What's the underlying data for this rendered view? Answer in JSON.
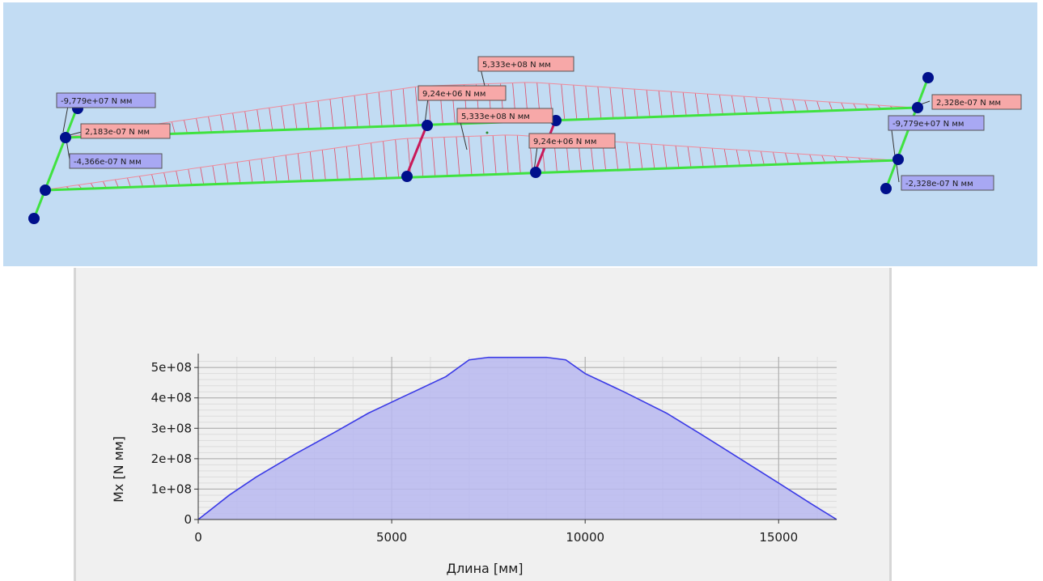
{
  "model_view": {
    "background": "#c2dcf3",
    "label_colors": {
      "positive": "#f7a8a8",
      "negative": "#a8a8f3"
    },
    "labels": [
      {
        "text": "5,333e+08 N мм",
        "sign": "positive"
      },
      {
        "text": "9,24e+06 N мм",
        "sign": "positive"
      },
      {
        "text": "5,333e+08 N мм",
        "sign": "positive"
      },
      {
        "text": "9,24e+06 N мм",
        "sign": "positive"
      },
      {
        "text": "-9,779e+07 N мм",
        "sign": "negative"
      },
      {
        "text": "2,183e-07 N мм",
        "sign": "positive"
      },
      {
        "text": "-4,366e-07 N мм",
        "sign": "negative"
      },
      {
        "text": "2,328e-07 N мм",
        "sign": "positive"
      },
      {
        "text": "-9,779e+07 N мм",
        "sign": "negative"
      },
      {
        "text": "-2,328e-07 N мм",
        "sign": "negative"
      }
    ]
  },
  "chart_data": {
    "type": "area",
    "xlabel": "Длина [мм]",
    "ylabel": "Mx [N мм]",
    "xlim": [
      0,
      16500
    ],
    "ylim": [
      0,
      535000000
    ],
    "xticks": [
      {
        "value": 0,
        "label": "0"
      },
      {
        "value": 5000,
        "label": "5000"
      },
      {
        "value": 10000,
        "label": "10000"
      },
      {
        "value": 15000,
        "label": "15000"
      }
    ],
    "yticks": [
      {
        "value": 0,
        "label": "0"
      },
      {
        "value": 100000000,
        "label": "1e+08"
      },
      {
        "value": 200000000,
        "label": "2e+08"
      },
      {
        "value": 300000000,
        "label": "3e+08"
      },
      {
        "value": 400000000,
        "label": "4e+08"
      },
      {
        "value": 500000000,
        "label": "5e+08"
      }
    ],
    "grid": true,
    "colors": {
      "line": "#3a3ae6",
      "fill": "#b8b8f0"
    },
    "series": [
      {
        "x": [
          0,
          400,
          800,
          1500,
          2500,
          3500,
          4400,
          5400,
          6400,
          7000,
          7500,
          9000,
          9500,
          10000,
          11000,
          12100,
          13000,
          14000,
          15000,
          15800,
          16500
        ],
        "y": [
          0,
          40000000,
          80000000,
          140000000,
          215000000,
          285000000,
          350000000,
          410000000,
          470000000,
          525000000,
          533300000,
          533300000,
          525000000,
          480000000,
          420000000,
          350000000,
          280000000,
          200000000,
          120000000,
          55000000,
          0
        ]
      }
    ]
  }
}
